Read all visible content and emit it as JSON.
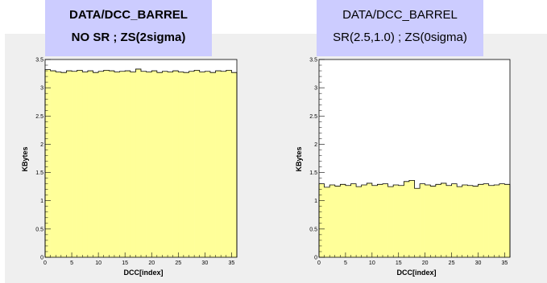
{
  "colors": {
    "fill": "#ffff99",
    "title_bg": "#ccccff",
    "canvas_bg": "#efefef",
    "line": "#000000"
  },
  "chart_data": [
    {
      "type": "bar",
      "title_line1": "DATA/DCC_BARREL",
      "title_line2": "NO SR ; ZS(2sigma)",
      "xlabel": "DCC[index]",
      "ylabel": "KBytes",
      "xlim": [
        0,
        36
      ],
      "ylim": [
        0,
        3.5
      ],
      "x_ticks": [
        "0",
        "5",
        "10",
        "15",
        "20",
        "25",
        "30",
        "35"
      ],
      "y_ticks": [
        "0",
        "0.5",
        "1",
        "1.5",
        "2",
        "2.5",
        "3",
        "3.5"
      ],
      "values": [
        3.32,
        3.3,
        3.28,
        3.27,
        3.3,
        3.29,
        3.31,
        3.28,
        3.3,
        3.27,
        3.29,
        3.31,
        3.3,
        3.28,
        3.29,
        3.3,
        3.28,
        3.33,
        3.29,
        3.28,
        3.3,
        3.27,
        3.29,
        3.28,
        3.3,
        3.28,
        3.27,
        3.29,
        3.31,
        3.28,
        3.29,
        3.27,
        3.3,
        3.29,
        3.31,
        3.27
      ]
    },
    {
      "type": "bar",
      "title_line1": "DATA/DCC_BARREL",
      "title_line2": "SR(2.5,1.0) ; ZS(0sigma)",
      "xlabel": "DCC[index]",
      "ylabel": "KBytes",
      "xlim": [
        0,
        36
      ],
      "ylim": [
        0,
        3.5
      ],
      "x_ticks": [
        "0",
        "5",
        "10",
        "15",
        "20",
        "25",
        "30",
        "35"
      ],
      "y_ticks": [
        "0",
        "0.5",
        "1",
        "1.5",
        "2",
        "2.5",
        "3",
        "3.5"
      ],
      "values": [
        1.3,
        1.24,
        1.28,
        1.26,
        1.29,
        1.27,
        1.3,
        1.25,
        1.28,
        1.31,
        1.27,
        1.29,
        1.3,
        1.25,
        1.28,
        1.27,
        1.34,
        1.36,
        1.22,
        1.3,
        1.28,
        1.26,
        1.29,
        1.31,
        1.27,
        1.3,
        1.25,
        1.28,
        1.27,
        1.26,
        1.29,
        1.3,
        1.27,
        1.28,
        1.3,
        1.29
      ]
    }
  ]
}
